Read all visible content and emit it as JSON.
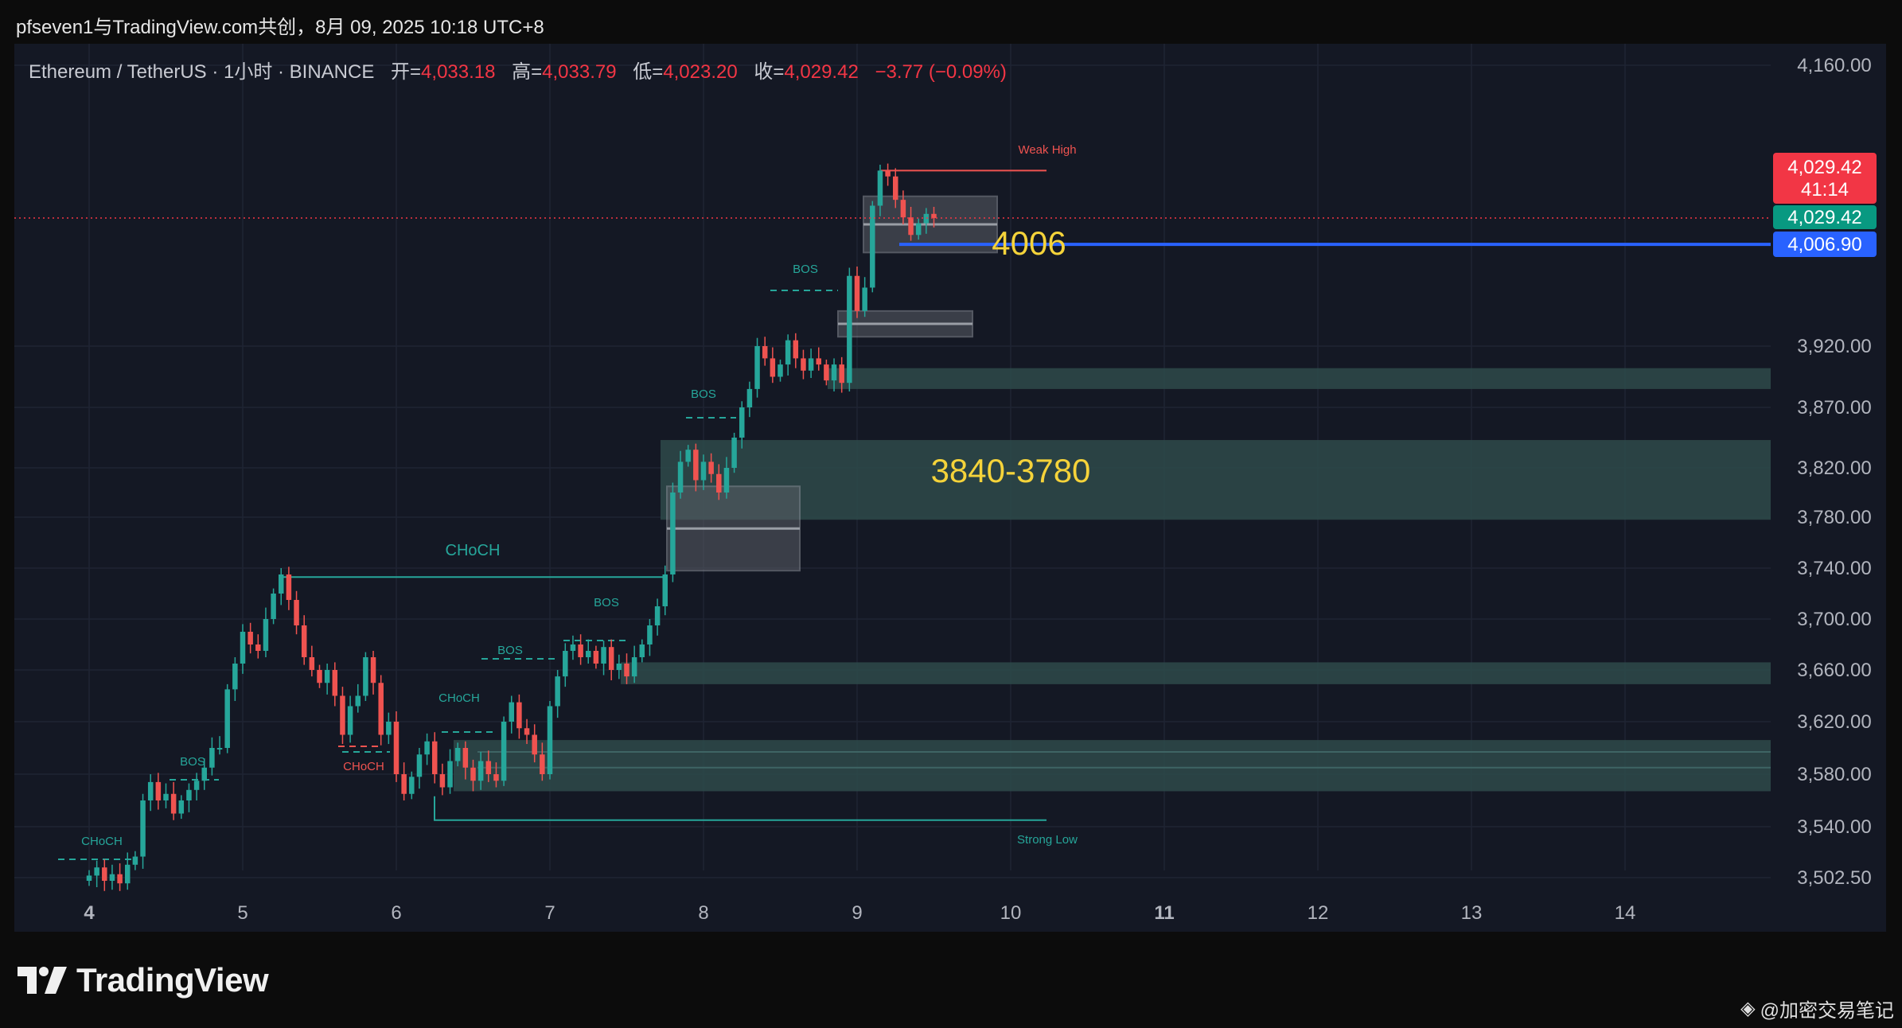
{
  "header": {
    "title": "pfseven1与TradingView.com共创，8月 09, 2025 10:18 UTC+8"
  },
  "legend": {
    "symbol": "Ethereum / TetherUS · 1小时 · BINANCE",
    "open_label": "开=",
    "open": "4,033.18",
    "high_label": "高=",
    "high": "4,033.79",
    "low_label": "低=",
    "low": "4,023.20",
    "close_label": "收=",
    "close": "4,029.42",
    "change": "−3.77 (−0.09%)"
  },
  "price_badges": {
    "last_price": "4,029.42",
    "countdown": "41:14",
    "close_price": "4,029.42",
    "line_price": "4,006.90"
  },
  "colors": {
    "up": "#26a69a",
    "down": "#ef5350",
    "zone": "#2e4a4a",
    "ob": "#5a5e66",
    "blue_line": "#2962ff",
    "annot_yellow": "#f5d33a",
    "weak_high": "#ef5350"
  },
  "chart_data": {
    "type": "candlestick",
    "y_ticks": [
      "4,160.00",
      "3,920.00",
      "3,870.00",
      "3,820.00",
      "3,780.00",
      "3,740.00",
      "3,700.00",
      "3,660.00",
      "3,620.00",
      "3,580.00",
      "3,540.00",
      "3,502.50"
    ],
    "x_ticks": [
      "4",
      "5",
      "6",
      "7",
      "8",
      "9",
      "10",
      "11",
      "12",
      "13",
      "14"
    ],
    "annotations": {
      "zone_label_big": "3840-3780",
      "level_label": "4006",
      "weak_high": "Weak High",
      "strong_low": "Strong Low",
      "choch_main": "CHoCH",
      "choch_labels": [
        "CHoCH",
        "CHoCH",
        "CHoCH"
      ],
      "bos_labels": [
        "BOS",
        "BOS",
        "BOS",
        "BOS",
        "BOS"
      ]
    },
    "zones": [
      {
        "low": 3885,
        "high": 3902
      },
      {
        "low": 3778,
        "high": 3843
      },
      {
        "low": 3649,
        "high": 3666
      },
      {
        "low": 3567,
        "high": 3606
      }
    ],
    "order_blocks": [
      {
        "low": 4000,
        "high": 4048
      },
      {
        "low": 3928,
        "high": 3950
      },
      {
        "low": 3738,
        "high": 3805
      }
    ],
    "levels": {
      "current": 4029.42,
      "blue_line": 4006.9,
      "weak_high": 4070,
      "strong_low": 3545,
      "choch_main": 3733
    },
    "candles": [
      [
        4.0,
        3504
      ],
      [
        4.05,
        3510
      ],
      [
        4.1,
        3500
      ],
      [
        4.15,
        3505
      ],
      [
        4.2,
        3498
      ],
      [
        4.25,
        3512
      ],
      [
        4.3,
        3518
      ],
      [
        4.35,
        3560
      ],
      [
        4.4,
        3574
      ],
      [
        4.45,
        3560
      ],
      [
        4.5,
        3565
      ],
      [
        4.55,
        3550
      ],
      [
        4.6,
        3560
      ],
      [
        4.65,
        3568
      ],
      [
        4.7,
        3575
      ],
      [
        4.75,
        3585
      ],
      [
        4.8,
        3600
      ],
      [
        4.85,
        3600
      ],
      [
        4.9,
        3645
      ],
      [
        4.95,
        3665
      ],
      [
        5.0,
        3690
      ],
      [
        5.05,
        3680
      ],
      [
        5.1,
        3675
      ],
      [
        5.15,
        3700
      ],
      [
        5.2,
        3720
      ],
      [
        5.25,
        3735
      ],
      [
        5.3,
        3715
      ],
      [
        5.35,
        3695
      ],
      [
        5.4,
        3670
      ],
      [
        5.45,
        3660
      ],
      [
        5.5,
        3650
      ],
      [
        5.55,
        3660
      ],
      [
        5.6,
        3640
      ],
      [
        5.65,
        3610
      ],
      [
        5.7,
        3632
      ],
      [
        5.75,
        3640
      ],
      [
        5.8,
        3670
      ],
      [
        5.85,
        3650
      ],
      [
        5.9,
        3610
      ],
      [
        5.95,
        3620
      ],
      [
        6.0,
        3580
      ],
      [
        6.05,
        3565
      ],
      [
        6.1,
        3578
      ],
      [
        6.15,
        3595
      ],
      [
        6.2,
        3605
      ],
      [
        6.25,
        3580
      ],
      [
        6.3,
        3570
      ],
      [
        6.35,
        3590
      ],
      [
        6.4,
        3600
      ],
      [
        6.45,
        3585
      ],
      [
        6.5,
        3575
      ],
      [
        6.55,
        3590
      ],
      [
        6.6,
        3580
      ],
      [
        6.65,
        3575
      ],
      [
        6.7,
        3620
      ],
      [
        6.75,
        3635
      ],
      [
        6.8,
        3615
      ],
      [
        6.85,
        3610
      ],
      [
        6.9,
        3595
      ],
      [
        6.95,
        3580
      ],
      [
        7.0,
        3632
      ],
      [
        7.05,
        3655
      ],
      [
        7.1,
        3675
      ],
      [
        7.15,
        3680
      ],
      [
        7.2,
        3670
      ],
      [
        7.25,
        3675
      ],
      [
        7.3,
        3665
      ],
      [
        7.35,
        3678
      ],
      [
        7.4,
        3660
      ],
      [
        7.45,
        3665
      ],
      [
        7.5,
        3655
      ],
      [
        7.55,
        3670
      ],
      [
        7.6,
        3680
      ],
      [
        7.65,
        3695
      ],
      [
        7.7,
        3710
      ],
      [
        7.75,
        3735
      ],
      [
        7.8,
        3800
      ],
      [
        7.85,
        3825
      ],
      [
        7.9,
        3835
      ],
      [
        7.95,
        3810
      ],
      [
        8.0,
        3825
      ],
      [
        8.05,
        3815
      ],
      [
        8.1,
        3800
      ],
      [
        8.15,
        3820
      ],
      [
        8.2,
        3845
      ],
      [
        8.25,
        3870
      ],
      [
        8.3,
        3885
      ],
      [
        8.35,
        3920
      ],
      [
        8.4,
        3910
      ],
      [
        8.45,
        3895
      ],
      [
        8.5,
        3905
      ],
      [
        8.55,
        3925
      ],
      [
        8.6,
        3910
      ],
      [
        8.65,
        3900
      ],
      [
        8.7,
        3910
      ],
      [
        8.75,
        3905
      ],
      [
        8.8,
        3892
      ],
      [
        8.85,
        3905
      ],
      [
        8.9,
        3890
      ],
      [
        8.95,
        3980
      ],
      [
        9.0,
        3950
      ],
      [
        9.05,
        3970
      ],
      [
        9.1,
        4040
      ],
      [
        9.15,
        4070
      ],
      [
        9.2,
        4065
      ],
      [
        9.25,
        4045
      ],
      [
        9.3,
        4030
      ],
      [
        9.35,
        4015
      ],
      [
        9.4,
        4025
      ],
      [
        9.45,
        4033
      ],
      [
        9.5,
        4029.42
      ]
    ]
  }
}
